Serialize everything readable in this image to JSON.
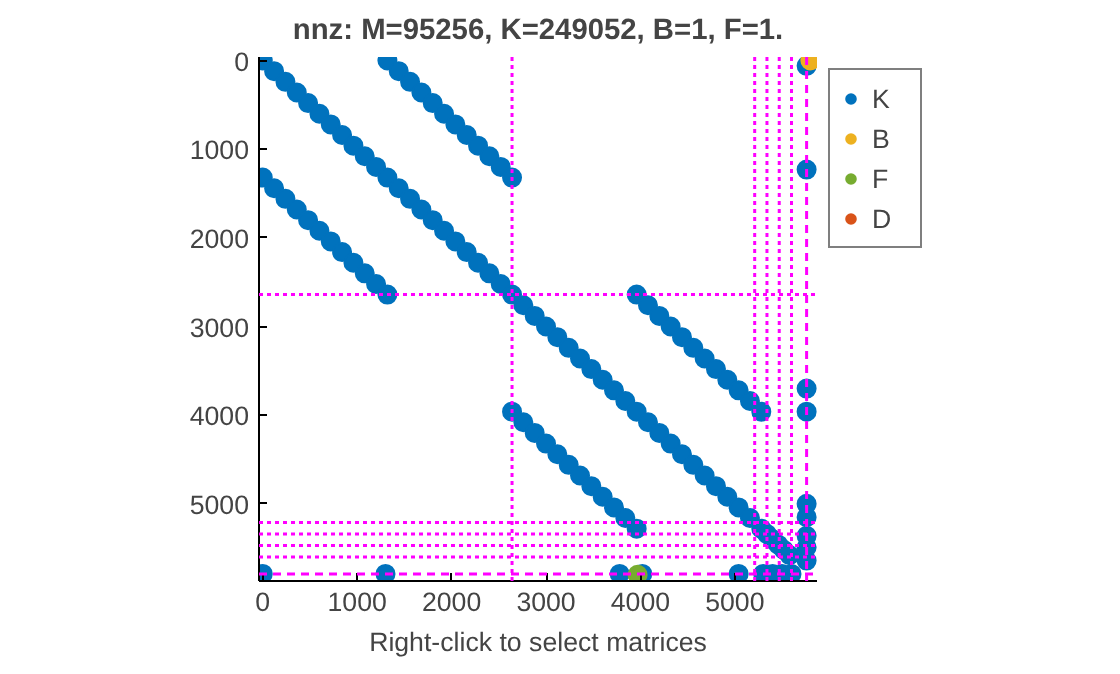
{
  "chart_data": {
    "type": "scatter",
    "title": "nnz: M=95256, K=249052, B=1, F=1.",
    "xlabel": "Right-click to select matrices",
    "xlim": [
      -40,
      5870
    ],
    "ylim": [
      5870,
      -40
    ],
    "xticks": [
      0,
      1000,
      2000,
      3000,
      4000,
      5000
    ],
    "yticks": [
      0,
      1000,
      2000,
      3000,
      4000,
      5000
    ],
    "grid": false,
    "legend": "top right",
    "marker": "circle",
    "series": [
      {
        "name": "K",
        "color": "#0072bd",
        "x": [
          0,
          120,
          240,
          360,
          480,
          600,
          720,
          840,
          960,
          1080,
          1200,
          1320,
          1440,
          1560,
          1680,
          1800,
          1920,
          2040,
          2160,
          2280,
          2400,
          2520,
          2640,
          2760,
          2880,
          3000,
          3120,
          3240,
          3360,
          3480,
          3600,
          3720,
          3840,
          3960,
          4080,
          4200,
          4320,
          4440,
          4560,
          4680,
          4800,
          4920,
          5040,
          5160,
          5280,
          1320,
          1440,
          1560,
          1680,
          1800,
          1920,
          2040,
          2160,
          2280,
          2400,
          2520,
          2640,
          0,
          120,
          240,
          360,
          480,
          600,
          720,
          840,
          960,
          1080,
          1200,
          1320,
          3960,
          4080,
          4200,
          4320,
          4440,
          4560,
          4680,
          4800,
          4920,
          5040,
          5160,
          5280,
          2640,
          2760,
          2880,
          3000,
          3120,
          3240,
          3360,
          3480,
          3600,
          3720,
          3840,
          3960,
          5340,
          5400,
          5460,
          5520,
          5580,
          0,
          1300,
          3780,
          4020,
          5040,
          5300,
          5400,
          5500,
          5600,
          5760,
          5760,
          5760,
          5760,
          5760,
          5760,
          5760,
          5760,
          5760
        ],
        "values": [
          0,
          120,
          240,
          360,
          480,
          600,
          720,
          840,
          960,
          1080,
          1200,
          1320,
          1440,
          1560,
          1680,
          1800,
          1920,
          2040,
          2160,
          2280,
          2400,
          2520,
          2640,
          2760,
          2880,
          3000,
          3120,
          3240,
          3360,
          3480,
          3600,
          3720,
          3840,
          3960,
          4080,
          4200,
          4320,
          4440,
          4560,
          4680,
          4800,
          4920,
          5040,
          5160,
          5280,
          0,
          120,
          240,
          360,
          480,
          600,
          720,
          840,
          960,
          1080,
          1200,
          1320,
          1320,
          1440,
          1560,
          1680,
          1800,
          1920,
          2040,
          2160,
          2280,
          2400,
          2520,
          2640,
          2640,
          2760,
          2880,
          3000,
          3120,
          3240,
          3360,
          3480,
          3600,
          3720,
          3840,
          3960,
          3960,
          4080,
          4200,
          4320,
          4440,
          4560,
          4680,
          4800,
          4920,
          5040,
          5160,
          5280,
          5340,
          5400,
          5460,
          5520,
          5580,
          5790,
          5790,
          5790,
          5790,
          5790,
          5790,
          5790,
          5790,
          5790,
          60,
          1230,
          3700,
          3960,
          5000,
          5150,
          5360,
          5490,
          5640
        ]
      },
      {
        "name": "B",
        "color": "#edb120",
        "x": [
          5800
        ],
        "values": [
          0
        ]
      },
      {
        "name": "F",
        "color": "#77ac30",
        "x": [
          3970
        ],
        "values": [
          5800
        ]
      },
      {
        "name": "D",
        "color": "#d95319"
      }
    ],
    "ref_lines": [
      {
        "axis": "x",
        "value": 2640,
        "color": "#ff00ff",
        "line_style": "dotted"
      },
      {
        "axis": "x",
        "value": 5210,
        "color": "#ff00ff",
        "line_style": "dotted"
      },
      {
        "axis": "x",
        "value": 5340,
        "color": "#ff00ff",
        "line_style": "dotted"
      },
      {
        "axis": "x",
        "value": 5470,
        "color": "#ff00ff",
        "line_style": "dotted"
      },
      {
        "axis": "x",
        "value": 5600,
        "color": "#ff00ff",
        "line_style": "dotted"
      },
      {
        "axis": "x",
        "value": 5760,
        "color": "#ff00ff",
        "line_style": "dashed"
      },
      {
        "axis": "y",
        "value": 2640,
        "color": "#ff00ff",
        "line_style": "dotted"
      },
      {
        "axis": "y",
        "value": 5210,
        "color": "#ff00ff",
        "line_style": "dotted"
      },
      {
        "axis": "y",
        "value": 5340,
        "color": "#ff00ff",
        "line_style": "dotted"
      },
      {
        "axis": "y",
        "value": 5470,
        "color": "#ff00ff",
        "line_style": "dotted"
      },
      {
        "axis": "y",
        "value": 5600,
        "color": "#ff00ff",
        "line_style": "dotted"
      },
      {
        "axis": "y",
        "value": 5790,
        "color": "#ff00ff",
        "line_style": "dashed"
      }
    ]
  }
}
